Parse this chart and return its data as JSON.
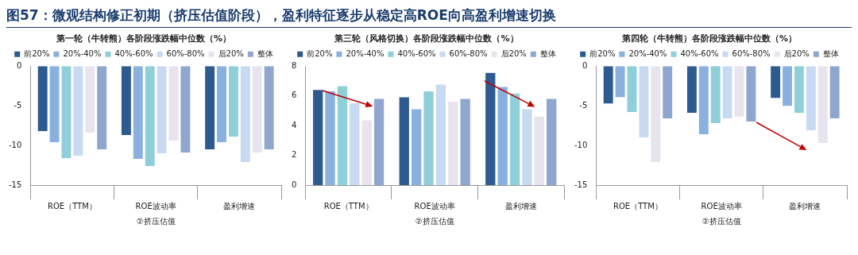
{
  "chart_data": [
    {
      "type": "other",
      "title": "图57：微观结构修正初期（挤压估值阶段），盈利特征逐步从稳定高ROE向高盈利增速切换"
    },
    {
      "type": "bar",
      "title": "第一轮（牛转熊）各阶段涨跌幅中位数（%）",
      "xlabel": "②挤压估值",
      "categories": [
        "ROE（TTM）",
        "ROE波动率",
        "盈利增速"
      ],
      "ylim": [
        -15,
        0
      ],
      "yticks": [
        -15,
        -10,
        -5,
        0
      ],
      "grid": false,
      "legend": "top",
      "series": [
        {
          "name": "前20%",
          "color": "#2e5b8f",
          "values": [
            -8.2,
            -8.7,
            -10.5
          ]
        },
        {
          "name": "20%-40%",
          "color": "#8ab0e0",
          "values": [
            -9.6,
            -11.7,
            -9.6
          ]
        },
        {
          "name": "40%-60%",
          "color": "#8fcfd9",
          "values": [
            -11.6,
            -12.6,
            -8.9
          ]
        },
        {
          "name": "60%-80%",
          "color": "#c8daf2",
          "values": [
            -11.3,
            -11.0,
            -12.1
          ]
        },
        {
          "name": "后20%",
          "color": "#e8e4ee",
          "values": [
            -8.4,
            -9.4,
            -10.9
          ]
        },
        {
          "name": "整体",
          "color": "#8fa6cf",
          "values": [
            -10.5,
            -10.9,
            -10.5
          ]
        }
      ]
    },
    {
      "type": "bar",
      "title": "第三轮（风格切换）各阶段涨跌幅中位数（%）",
      "xlabel": "②挤压估值",
      "categories": [
        "ROE（TTM）",
        "ROE波动率",
        "盈利增速"
      ],
      "ylim": [
        0,
        8
      ],
      "yticks": [
        0,
        2,
        4,
        6,
        8
      ],
      "grid": false,
      "legend": "top",
      "series": [
        {
          "name": "前20%",
          "color": "#2e5b8f",
          "values": [
            6.4,
            5.9,
            7.55
          ]
        },
        {
          "name": "20%-40%",
          "color": "#8ab0e0",
          "values": [
            6.3,
            5.1,
            6.6
          ]
        },
        {
          "name": "40%-60%",
          "color": "#8fcfd9",
          "values": [
            6.65,
            6.3,
            6.15
          ]
        },
        {
          "name": "60%-80%",
          "color": "#c8daf2",
          "values": [
            5.5,
            6.75,
            5.1
          ]
        },
        {
          "name": "后20%",
          "color": "#e8e4ee",
          "values": [
            4.35,
            5.6,
            4.6
          ]
        },
        {
          "name": "整体",
          "color": "#8fa6cf",
          "values": [
            5.8,
            5.8,
            5.8
          ]
        }
      ]
    },
    {
      "type": "bar",
      "title": "第四轮（牛转熊）各阶段涨跌幅中位数（%）",
      "xlabel": "②挤压估值",
      "categories": [
        "ROE（TTM）",
        "ROE波动率",
        "盈利增速"
      ],
      "ylim": [
        -15,
        0
      ],
      "yticks": [
        -15,
        -10,
        -5,
        0
      ],
      "grid": false,
      "legend": "top",
      "series": [
        {
          "name": "前20%",
          "color": "#2e5b8f",
          "values": [
            -4.7,
            -5.9,
            -4.0
          ]
        },
        {
          "name": "20%-40%",
          "color": "#8ab0e0",
          "values": [
            -3.9,
            -8.6,
            -5.0
          ]
        },
        {
          "name": "40%-60%",
          "color": "#8fcfd9",
          "values": [
            -5.8,
            -7.2,
            -5.9
          ]
        },
        {
          "name": "60%-80%",
          "color": "#c8daf2",
          "values": [
            -9.0,
            -6.6,
            -8.1
          ]
        },
        {
          "name": "后20%",
          "color": "#e8e4ee",
          "values": [
            -12.1,
            -6.4,
            -9.7
          ]
        },
        {
          "name": "整体",
          "color": "#8fa6cf",
          "values": [
            -6.6,
            -7.0,
            -6.6
          ]
        }
      ]
    }
  ]
}
